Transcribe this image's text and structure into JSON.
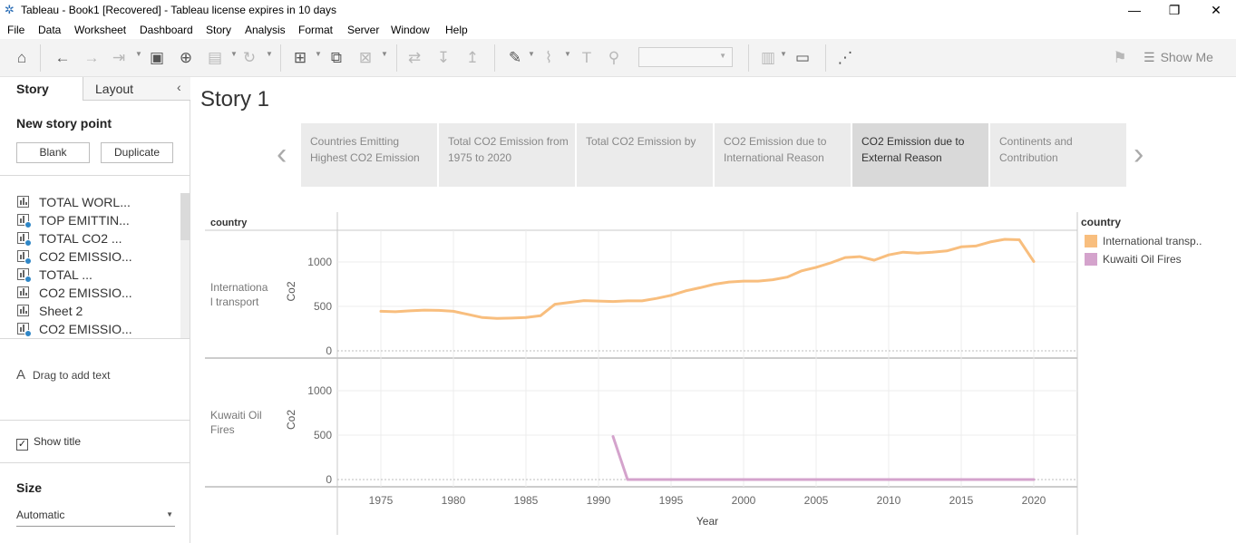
{
  "window": {
    "title": "Tableau - Book1 [Recovered] - Tableau license expires in 10 days",
    "minimize": "—",
    "restore": "❐",
    "close": "✕"
  },
  "menu": [
    "File",
    "Data",
    "Worksheet",
    "Dashboard",
    "Story",
    "Analysis",
    "Format",
    "Server",
    "Window",
    "Help"
  ],
  "toolbar": {
    "show_me": "Show Me"
  },
  "sidebar": {
    "tab_story": "Story",
    "tab_layout": "Layout",
    "collapse": "‹",
    "new_story_point": "New story point",
    "blank": "Blank",
    "duplicate": "Duplicate",
    "sheets": [
      "TOTAL WORL...",
      "TOP EMITTIN...",
      "TOTAL CO2 ...",
      "CO2 EMISSIO...",
      "TOTAL ...",
      "CO2 EMISSIO...",
      "Sheet 2",
      "CO2 EMISSIO..."
    ],
    "drag_text": "Drag to add text",
    "drag_icon": "A",
    "show_title": "Show title",
    "show_title_checked": "✓",
    "size_label": "Size",
    "size_value": "Automatic"
  },
  "story": {
    "title": "Story 1",
    "prev": "‹",
    "next": "›",
    "points": [
      "Countries Emitting Highest CO2 Emission",
      "Total CO2 Emission from 1975 to 2020",
      "Total CO2 Emission by",
      "CO2 Emission due to International Reason",
      "CO2 Emission due to External Reason",
      "Continents and Contribution"
    ],
    "active_index": 4
  },
  "chart_data": {
    "type": "line",
    "row_header": "country",
    "xlabel": "Year",
    "ylabel": "Co2",
    "xlim": [
      1971,
      2023
    ],
    "x_ticks": [
      1975,
      1980,
      1985,
      1990,
      1995,
      2000,
      2005,
      2010,
      2015,
      2020
    ],
    "ylim": [
      0,
      1300
    ],
    "y_ticks": [
      0,
      500,
      1000
    ],
    "legend_title": "country",
    "colors": {
      "International transport": "#f8be7e",
      "Kuwaiti Oil Fires": "#d4a3cc"
    },
    "series": [
      {
        "name": "International transport",
        "legend_label": "International transp..",
        "row_label": "Internationa l transport",
        "x": [
          1975,
          1976,
          1977,
          1978,
          1979,
          1980,
          1981,
          1982,
          1983,
          1984,
          1985,
          1986,
          1987,
          1988,
          1989,
          1990,
          1991,
          1992,
          1993,
          1994,
          1995,
          1996,
          1997,
          1998,
          1999,
          2000,
          2001,
          2002,
          2003,
          2004,
          2005,
          2006,
          2007,
          2008,
          2009,
          2010,
          2011,
          2012,
          2013,
          2014,
          2015,
          2016,
          2017,
          2018,
          2019,
          2020
        ],
        "y": [
          445,
          440,
          450,
          458,
          455,
          445,
          410,
          375,
          365,
          368,
          375,
          395,
          525,
          545,
          565,
          560,
          555,
          562,
          562,
          590,
          625,
          675,
          710,
          750,
          775,
          785,
          785,
          800,
          830,
          900,
          940,
          990,
          1050,
          1060,
          1020,
          1080,
          1110,
          1100,
          1110,
          1125,
          1170,
          1180,
          1225,
          1255,
          1250,
          1005
        ]
      },
      {
        "name": "Kuwaiti Oil Fires",
        "legend_label": "Kuwaiti Oil Fires",
        "row_label": "Kuwaiti Oil Fires",
        "x": [
          1991,
          1992,
          1993,
          1994,
          1995,
          1996,
          1997,
          1998,
          1999,
          2000,
          2001,
          2002,
          2003,
          2004,
          2005,
          2006,
          2007,
          2008,
          2009,
          2010,
          2011,
          2012,
          2013,
          2014,
          2015,
          2016,
          2017,
          2018,
          2019,
          2020
        ],
        "y": [
          485,
          0,
          0,
          0,
          0,
          0,
          0,
          0,
          0,
          0,
          0,
          0,
          0,
          0,
          0,
          0,
          0,
          0,
          0,
          0,
          0,
          0,
          0,
          0,
          0,
          0,
          0,
          0,
          0,
          0
        ]
      }
    ]
  }
}
